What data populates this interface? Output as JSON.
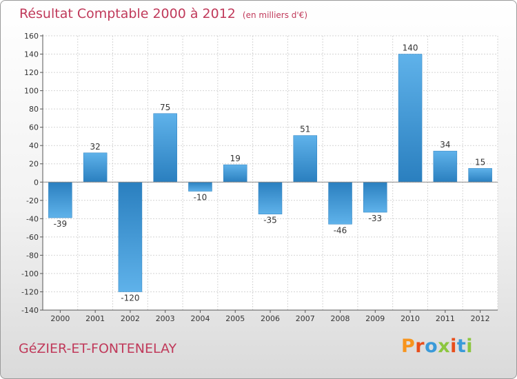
{
  "header": {
    "title": "Résultat Comptable 2000 à 2012",
    "unit": "(en milliers d'€)"
  },
  "footer": {
    "city": "GéZIER-ET-FONTENELAY",
    "logo": "Proxiti",
    "logo_colors": [
      "#f7941d",
      "#e84e1b",
      "#3a9ad9",
      "#8cc63f",
      "#e84e1b",
      "#3a9ad9",
      "#8cc63f"
    ]
  },
  "colors": {
    "title": "#c0395a",
    "bar_dark": "#2a7fbf",
    "bar_light": "#5fb2ea"
  },
  "chart_data": {
    "type": "bar",
    "title": "Résultat Comptable 2000 à 2012",
    "subtitle": "(en milliers d'€)",
    "xlabel": "",
    "ylabel": "",
    "categories": [
      "2000",
      "2001",
      "2002",
      "2003",
      "2004",
      "2005",
      "2006",
      "2007",
      "2008",
      "2009",
      "2010",
      "2011",
      "2012"
    ],
    "values": [
      -39,
      32,
      -120,
      75,
      -10,
      19,
      -35,
      51,
      -46,
      -33,
      140,
      34,
      15
    ],
    "ylim": [
      -140,
      160
    ],
    "yticks": [
      160,
      140,
      120,
      100,
      80,
      60,
      40,
      20,
      0,
      -20,
      -40,
      -60,
      -80,
      -100,
      -120,
      -140
    ],
    "grid": true
  }
}
